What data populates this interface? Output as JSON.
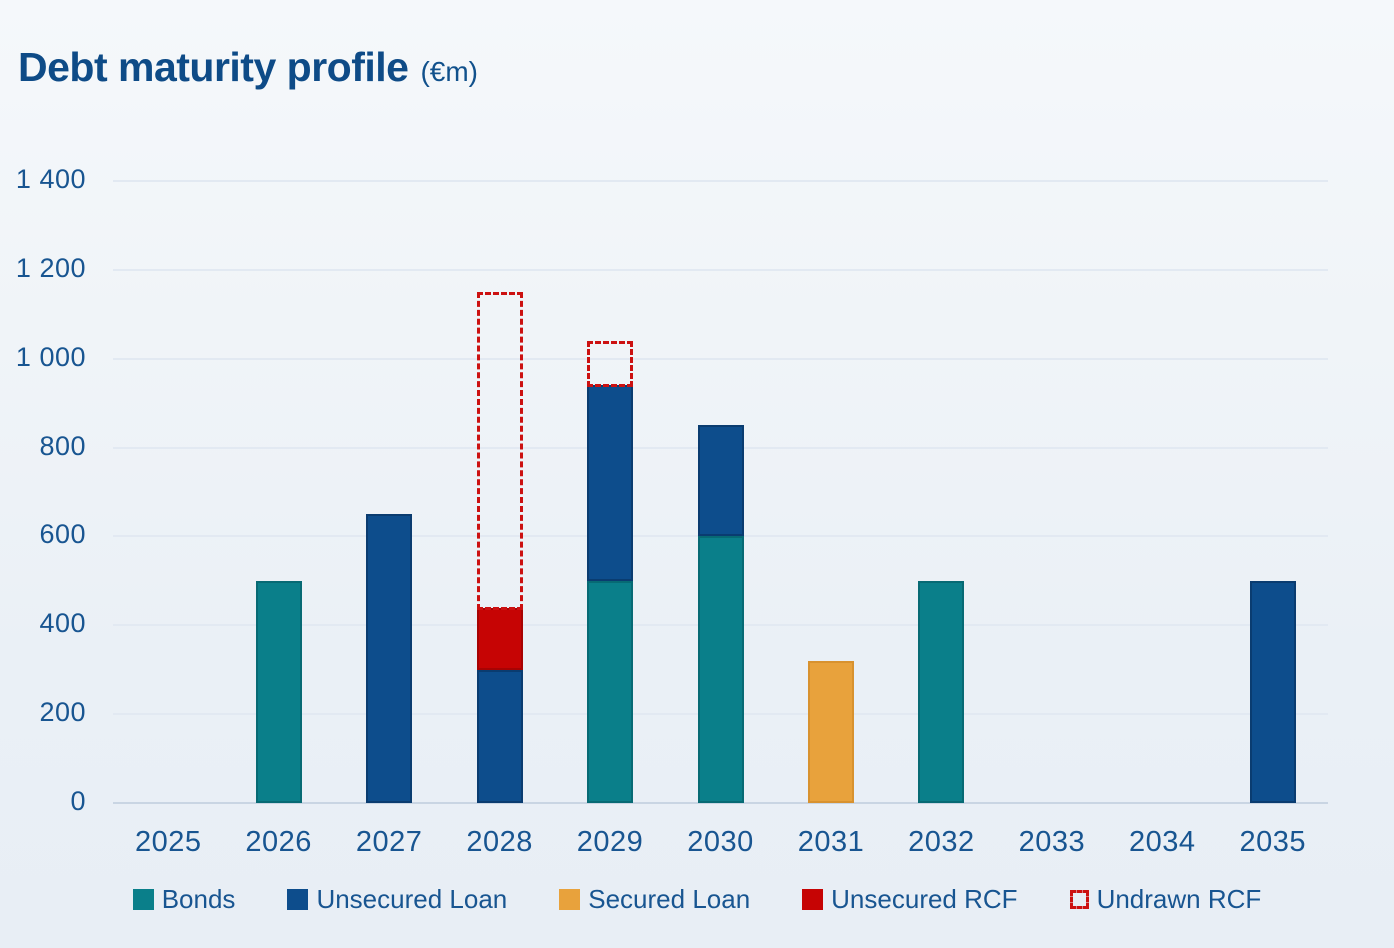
{
  "header": {
    "title": "Debt maturity profile",
    "title_suffix": "(€m)"
  },
  "colors": {
    "title_text": "#0e4b87",
    "axis_text": "#185591",
    "gridline": "#e2e9f2",
    "baseline": "#c9d5e3",
    "bonds": "#0a7f8a",
    "unsecured_loan": "#0d4d8c",
    "secured_loan": "#e8a23c",
    "unsecured_rcf": "#c60404",
    "undrawn_rcf_dash": "#cc1111"
  },
  "chart_data": {
    "type": "bar",
    "variant": "stacked",
    "title": "Debt maturity profile",
    "subtitle": "(€m)",
    "xlabel": "",
    "ylabel": "",
    "ylim": [
      0,
      1400
    ],
    "ytick_step": 200,
    "grid": true,
    "legend_position": "bottom",
    "categories": [
      "2025",
      "2026",
      "2027",
      "2028",
      "2029",
      "2030",
      "2031",
      "2032",
      "2033",
      "2034",
      "2035"
    ],
    "yticks": [
      {
        "value": 0,
        "label": "0"
      },
      {
        "value": 200,
        "label": "200"
      },
      {
        "value": 400,
        "label": "400"
      },
      {
        "value": 600,
        "label": "600"
      },
      {
        "value": 800,
        "label": "800"
      },
      {
        "value": 1000,
        "label": "1 000"
      },
      {
        "value": 1200,
        "label": "1 200"
      },
      {
        "value": 1400,
        "label": "1 400"
      }
    ],
    "series": [
      {
        "name": "Bonds",
        "style": "solid",
        "color": "#0a7f8a",
        "border_color": "#076a74",
        "values": [
          0,
          500,
          0,
          0,
          500,
          600,
          0,
          500,
          0,
          0,
          0
        ]
      },
      {
        "name": "Unsecured Loan",
        "style": "solid",
        "color": "#0d4d8c",
        "border_color": "#0a3c70",
        "values": [
          0,
          0,
          650,
          300,
          440,
          250,
          0,
          0,
          0,
          0,
          500
        ]
      },
      {
        "name": "Secured Loan",
        "style": "solid",
        "color": "#e8a23c",
        "border_color": "#d8922f",
        "values": [
          0,
          0,
          0,
          0,
          0,
          0,
          320,
          0,
          0,
          0,
          0
        ]
      },
      {
        "name": "Unsecured RCF",
        "style": "solid",
        "color": "#c60404",
        "border_color": "#a80303",
        "values": [
          0,
          0,
          0,
          140,
          0,
          0,
          0,
          0,
          0,
          0,
          0
        ]
      },
      {
        "name": "Undrawn RCF",
        "style": "dashed",
        "color": "#cc1111",
        "border_color": "#cc1111",
        "values": [
          0,
          0,
          0,
          710,
          100,
          0,
          0,
          0,
          0,
          0,
          0
        ]
      }
    ]
  }
}
